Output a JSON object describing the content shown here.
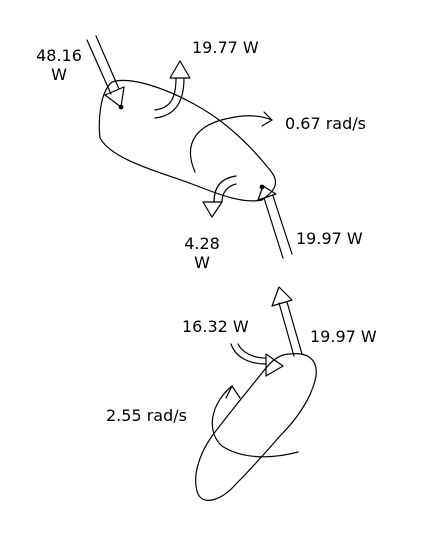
{
  "diagram": {
    "top_body": {
      "force_in_value": "48.16",
      "force_in_unit": "W",
      "torque_top": "19.77 W",
      "angular_velocity": "0.67 rad/s",
      "torque_bottom_value": "4.28",
      "torque_bottom_unit": "W",
      "force_right": "19.97 W"
    },
    "bottom_body": {
      "torque": "16.32 W",
      "force": "19.97 W",
      "angular_velocity": "2.55 rad/s"
    }
  },
  "colors": {
    "stroke": "#000000",
    "background": "#ffffff"
  }
}
